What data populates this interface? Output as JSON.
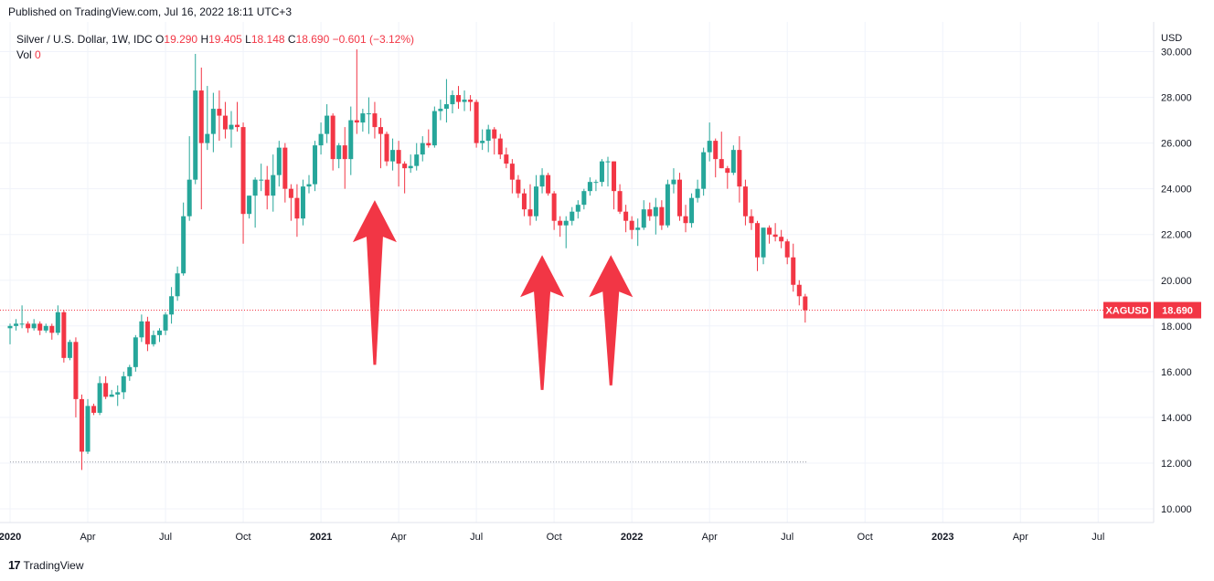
{
  "header": {
    "published": "Published on TradingView.com, Jul 16, 2022 18:11 UTC+3"
  },
  "legend": {
    "symbol": "Silver / U.S. Dollar, 1W, IDC",
    "o_label": "O",
    "o_value": "19.290",
    "h_label": "H",
    "h_value": "19.405",
    "l_label": "L",
    "l_value": "18.148",
    "c_label": "C",
    "c_value": "18.690",
    "change": "−0.601 (−3.12%)",
    "vol_label": "Vol",
    "vol_value": "0"
  },
  "footer": {
    "brand": "TradingView"
  },
  "colors": {
    "up": "#26a69a",
    "down": "#f23645",
    "arrow": "#f23645",
    "grid": "#f0f3fa",
    "text": "#131722"
  },
  "chart_data": {
    "type": "candlestick",
    "currency_label": "USD",
    "y_ticks": [
      "30.000",
      "28.000",
      "26.000",
      "24.000",
      "22.000",
      "20.000",
      "18.000",
      "16.000",
      "14.000",
      "12.000",
      "10.000"
    ],
    "ylim": [
      9.4,
      31.3
    ],
    "x_ticks": [
      {
        "label": "2020",
        "week": 0,
        "bold": true
      },
      {
        "label": "Apr",
        "week": 13
      },
      {
        "label": "Jul",
        "week": 26
      },
      {
        "label": "Oct",
        "week": 39
      },
      {
        "label": "2021",
        "week": 52,
        "bold": true
      },
      {
        "label": "Apr",
        "week": 65
      },
      {
        "label": "Jul",
        "week": 78
      },
      {
        "label": "Oct",
        "week": 91
      },
      {
        "label": "2022",
        "week": 104,
        "bold": true
      },
      {
        "label": "Apr",
        "week": 117
      },
      {
        "label": "Jul",
        "week": 130
      },
      {
        "label": "Oct",
        "week": 143
      },
      {
        "label": "2023",
        "week": 156,
        "bold": true
      },
      {
        "label": "Apr",
        "week": 169
      },
      {
        "label": "Jul",
        "week": 182
      }
    ],
    "price_label": {
      "symbol": "XAGUSD",
      "value": "18.690",
      "price": 18.69
    },
    "low_line": 12.05,
    "grid": true,
    "candles": [
      [
        17.9,
        18.1,
        17.2,
        18.0
      ],
      [
        18.0,
        18.3,
        17.8,
        18.1
      ],
      [
        18.1,
        18.9,
        17.9,
        18.1
      ],
      [
        18.1,
        18.2,
        17.7,
        17.9
      ],
      [
        17.9,
        18.3,
        17.8,
        18.1
      ],
      [
        18.1,
        18.2,
        17.6,
        17.8
      ],
      [
        17.8,
        18.1,
        17.7,
        18.0
      ],
      [
        18.0,
        18.1,
        17.4,
        17.7
      ],
      [
        17.7,
        18.9,
        17.6,
        18.6
      ],
      [
        18.6,
        18.7,
        16.4,
        16.6
      ],
      [
        16.6,
        17.4,
        16.5,
        17.3
      ],
      [
        17.3,
        17.5,
        14.0,
        14.8
      ],
      [
        14.8,
        15.0,
        11.7,
        12.5
      ],
      [
        12.5,
        14.8,
        12.4,
        14.5
      ],
      [
        14.5,
        14.6,
        14.1,
        14.2
      ],
      [
        14.2,
        15.8,
        14.1,
        15.5
      ],
      [
        15.5,
        15.8,
        14.8,
        14.9
      ],
      [
        14.9,
        15.2,
        14.9,
        15.0
      ],
      [
        15.0,
        15.4,
        14.5,
        15.1
      ],
      [
        15.1,
        16.0,
        14.8,
        15.8
      ],
      [
        15.8,
        16.3,
        15.6,
        16.2
      ],
      [
        16.2,
        17.6,
        16.0,
        17.5
      ],
      [
        17.5,
        18.5,
        17.3,
        18.2
      ],
      [
        18.2,
        18.4,
        16.9,
        17.2
      ],
      [
        17.2,
        17.8,
        17.1,
        17.6
      ],
      [
        17.6,
        17.9,
        17.3,
        17.8
      ],
      [
        17.8,
        18.6,
        17.6,
        18.5
      ],
      [
        18.5,
        19.7,
        18.1,
        19.3
      ],
      [
        19.3,
        20.6,
        19.1,
        20.3
      ],
      [
        20.3,
        23.4,
        20.2,
        22.8
      ],
      [
        22.8,
        26.3,
        22.6,
        24.4
      ],
      [
        24.4,
        29.9,
        24.2,
        28.3
      ],
      [
        28.3,
        29.3,
        23.1,
        26.0
      ],
      [
        26.0,
        28.5,
        25.7,
        26.4
      ],
      [
        26.4,
        28.2,
        25.6,
        27.5
      ],
      [
        27.5,
        28.3,
        26.1,
        27.2
      ],
      [
        27.2,
        27.8,
        26.2,
        26.6
      ],
      [
        26.6,
        27.4,
        25.8,
        26.8
      ],
      [
        26.8,
        27.8,
        26.5,
        26.7
      ],
      [
        26.7,
        26.9,
        21.6,
        22.9
      ],
      [
        22.9,
        23.7,
        22.7,
        23.7
      ],
      [
        23.7,
        24.5,
        22.3,
        24.4
      ],
      [
        24.4,
        25.1,
        23.9,
        24.4
      ],
      [
        24.4,
        25.0,
        23.1,
        23.7
      ],
      [
        23.7,
        25.5,
        23.0,
        24.6
      ],
      [
        24.6,
        26.1,
        24.1,
        25.8
      ],
      [
        25.8,
        26.0,
        23.4,
        24.0
      ],
      [
        24.0,
        24.2,
        22.6,
        23.6
      ],
      [
        23.6,
        24.2,
        21.9,
        22.7
      ],
      [
        22.7,
        24.4,
        22.4,
        24.1
      ],
      [
        24.1,
        24.6,
        23.8,
        24.2
      ],
      [
        24.2,
        26.1,
        23.9,
        25.9
      ],
      [
        25.9,
        26.9,
        25.5,
        26.4
      ],
      [
        26.4,
        27.7,
        26.0,
        27.2
      ],
      [
        27.2,
        27.3,
        24.8,
        25.3
      ],
      [
        25.3,
        26.0,
        24.9,
        25.9
      ],
      [
        25.9,
        26.7,
        24.0,
        25.3
      ],
      [
        25.3,
        27.6,
        24.6,
        27.0
      ],
      [
        27.0,
        30.1,
        26.4,
        26.9
      ],
      [
        26.9,
        27.5,
        26.5,
        27.3
      ],
      [
        27.3,
        28.0,
        26.4,
        27.3
      ],
      [
        27.3,
        27.8,
        26.2,
        26.7
      ],
      [
        26.7,
        27.1,
        24.9,
        26.4
      ],
      [
        26.4,
        26.5,
        25.0,
        25.2
      ],
      [
        25.2,
        26.2,
        24.8,
        25.7
      ],
      [
        25.7,
        26.1,
        24.1,
        25.1
      ],
      [
        25.1,
        25.2,
        23.8,
        24.9
      ],
      [
        24.9,
        25.5,
        24.7,
        25.0
      ],
      [
        25.0,
        26.0,
        24.8,
        25.5
      ],
      [
        25.5,
        26.3,
        25.2,
        26.0
      ],
      [
        26.0,
        26.6,
        25.8,
        25.9
      ],
      [
        25.9,
        27.6,
        25.8,
        27.4
      ],
      [
        27.4,
        27.9,
        27.0,
        27.5
      ],
      [
        27.5,
        28.8,
        26.9,
        27.7
      ],
      [
        27.7,
        28.3,
        27.3,
        28.1
      ],
      [
        28.1,
        28.5,
        27.5,
        27.8
      ],
      [
        27.8,
        28.3,
        27.4,
        27.9
      ],
      [
        27.9,
        28.1,
        27.4,
        27.8
      ],
      [
        27.8,
        27.9,
        25.8,
        26.0
      ],
      [
        26.0,
        26.6,
        25.7,
        26.1
      ],
      [
        26.1,
        26.8,
        25.6,
        26.6
      ],
      [
        26.6,
        26.7,
        25.5,
        26.2
      ],
      [
        26.2,
        26.4,
        25.3,
        25.5
      ],
      [
        25.5,
        25.8,
        24.9,
        25.1
      ],
      [
        25.1,
        25.3,
        23.8,
        24.4
      ],
      [
        24.4,
        24.6,
        23.6,
        23.8
      ],
      [
        23.8,
        24.0,
        22.8,
        23.1
      ],
      [
        23.1,
        24.2,
        22.4,
        22.8
      ],
      [
        22.8,
        24.6,
        22.6,
        24.1
      ],
      [
        24.1,
        24.9,
        23.8,
        24.6
      ],
      [
        24.6,
        24.7,
        23.7,
        23.8
      ],
      [
        23.8,
        23.9,
        22.2,
        22.6
      ],
      [
        22.6,
        22.8,
        21.9,
        22.4
      ],
      [
        22.4,
        22.8,
        21.4,
        22.6
      ],
      [
        22.6,
        23.2,
        22.4,
        23.0
      ],
      [
        23.0,
        23.5,
        22.7,
        23.3
      ],
      [
        23.3,
        24.0,
        23.1,
        23.9
      ],
      [
        23.9,
        24.5,
        23.7,
        24.3
      ],
      [
        24.3,
        24.4,
        23.9,
        24.3
      ],
      [
        24.3,
        25.3,
        24.1,
        25.2
      ],
      [
        25.2,
        25.4,
        24.1,
        25.2
      ],
      [
        25.2,
        25.2,
        23.1,
        23.9
      ],
      [
        23.9,
        24.2,
        22.9,
        23.0
      ],
      [
        23.0,
        23.3,
        22.1,
        22.6
      ],
      [
        22.6,
        22.8,
        21.8,
        22.2
      ],
      [
        22.2,
        22.7,
        21.5,
        22.3
      ],
      [
        22.3,
        23.5,
        22.2,
        23.1
      ],
      [
        23.1,
        23.4,
        22.6,
        22.8
      ],
      [
        22.8,
        23.6,
        22.0,
        23.2
      ],
      [
        23.2,
        23.5,
        22.2,
        22.4
      ],
      [
        22.4,
        24.4,
        22.3,
        24.2
      ],
      [
        24.2,
        24.9,
        23.8,
        24.4
      ],
      [
        24.4,
        24.7,
        22.6,
        22.8
      ],
      [
        22.8,
        23.3,
        22.1,
        22.5
      ],
      [
        22.5,
        23.8,
        22.3,
        23.6
      ],
      [
        23.6,
        24.4,
        23.4,
        24.0
      ],
      [
        24.0,
        25.8,
        23.7,
        25.6
      ],
      [
        25.6,
        26.9,
        25.2,
        26.1
      ],
      [
        26.1,
        26.2,
        24.5,
        25.3
      ],
      [
        25.3,
        26.5,
        24.9,
        24.9
      ],
      [
        24.9,
        25.0,
        24.0,
        24.7
      ],
      [
        24.7,
        25.9,
        24.6,
        25.7
      ],
      [
        25.7,
        26.3,
        23.4,
        24.1
      ],
      [
        24.1,
        24.4,
        22.4,
        22.8
      ],
      [
        22.8,
        23.1,
        22.2,
        22.5
      ],
      [
        22.5,
        22.6,
        20.4,
        21.0
      ],
      [
        21.0,
        22.3,
        20.7,
        22.3
      ],
      [
        22.3,
        22.4,
        21.6,
        22.0
      ],
      [
        22.0,
        22.5,
        21.7,
        21.9
      ],
      [
        21.9,
        22.2,
        21.4,
        21.7
      ],
      [
        21.7,
        21.8,
        20.7,
        21.0
      ],
      [
        21.0,
        21.6,
        19.5,
        19.8
      ],
      [
        19.8,
        20.0,
        18.9,
        19.3
      ],
      [
        19.29,
        19.405,
        18.148,
        18.69
      ]
    ],
    "annotations": [
      {
        "type": "arrow-up",
        "week": 61,
        "tip": 23.5,
        "tail": 16.3
      },
      {
        "type": "arrow-up",
        "week": 89,
        "tip": 21.1,
        "tail": 15.2
      },
      {
        "type": "arrow-up",
        "week": 100.5,
        "tip": 21.1,
        "tail": 15.4
      }
    ]
  }
}
